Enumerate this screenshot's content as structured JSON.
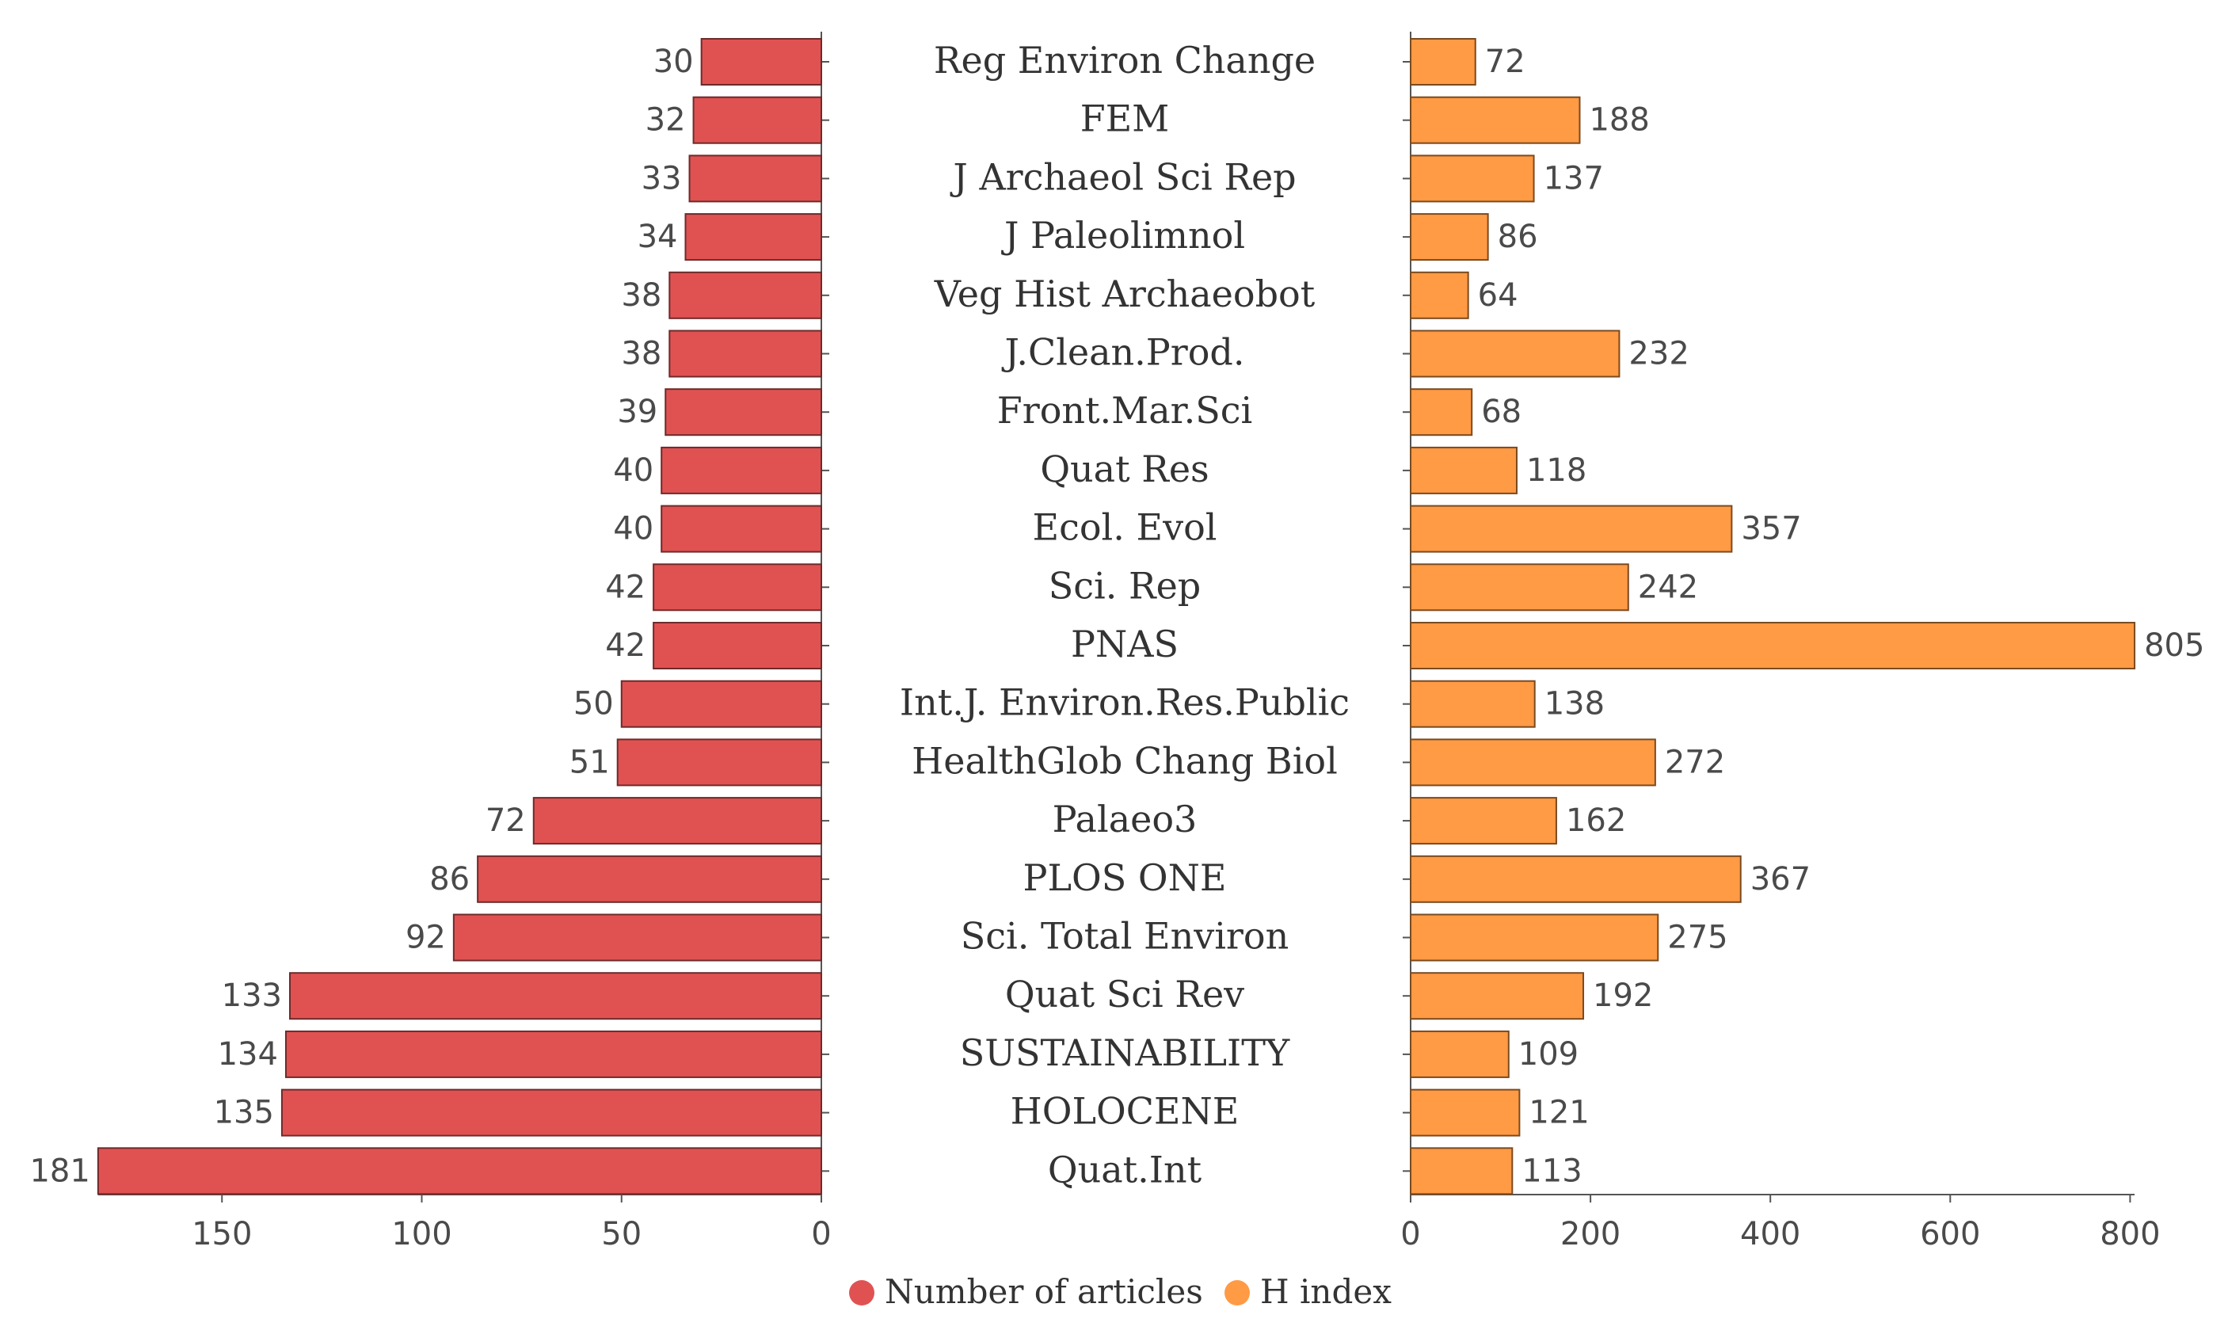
{
  "chart_data": {
    "type": "bar",
    "orientation": "horizontal",
    "layout": "back-to-back",
    "categories": [
      "Reg Environ Change",
      "FEM",
      "J Archaeol Sci Rep",
      "J Paleolimnol",
      "Veg Hist Archaeobot",
      "J.Clean.Prod.",
      "Front.Mar.Sci",
      "Quat Res",
      "Ecol. Evol",
      "Sci. Rep",
      "PNAS",
      "Int.J. Environ.Res.Public",
      "HealthGlob Chang Biol",
      "Palaeo3",
      "PLOS ONE",
      "Sci. Total Environ",
      "Quat Sci Rev",
      "SUSTAINABILITY",
      "HOLOCENE",
      "Quat.Int"
    ],
    "series": [
      {
        "name": "Number of articles",
        "color": "#e05252",
        "values": [
          30,
          32,
          33,
          34,
          38,
          38,
          39,
          40,
          40,
          42,
          42,
          50,
          51,
          72,
          86,
          92,
          133,
          134,
          135,
          181
        ],
        "xlim": [
          181,
          0
        ],
        "ticks": [
          "150",
          "100",
          "50",
          "0"
        ],
        "tick_values": [
          150,
          100,
          50,
          0
        ]
      },
      {
        "name": "H index",
        "color": "#ff9a45",
        "values": [
          72,
          188,
          137,
          86,
          64,
          232,
          68,
          118,
          357,
          242,
          805,
          138,
          272,
          162,
          367,
          275,
          192,
          109,
          121,
          113
        ],
        "xlim": [
          0,
          805
        ],
        "ticks": [
          "0",
          "200",
          "400",
          "600",
          "800"
        ],
        "tick_values": [
          0,
          200,
          400,
          600,
          800
        ]
      }
    ],
    "legend": {
      "position": "bottom-center",
      "items": [
        "Number of articles",
        "H index"
      ]
    },
    "grid": false
  }
}
